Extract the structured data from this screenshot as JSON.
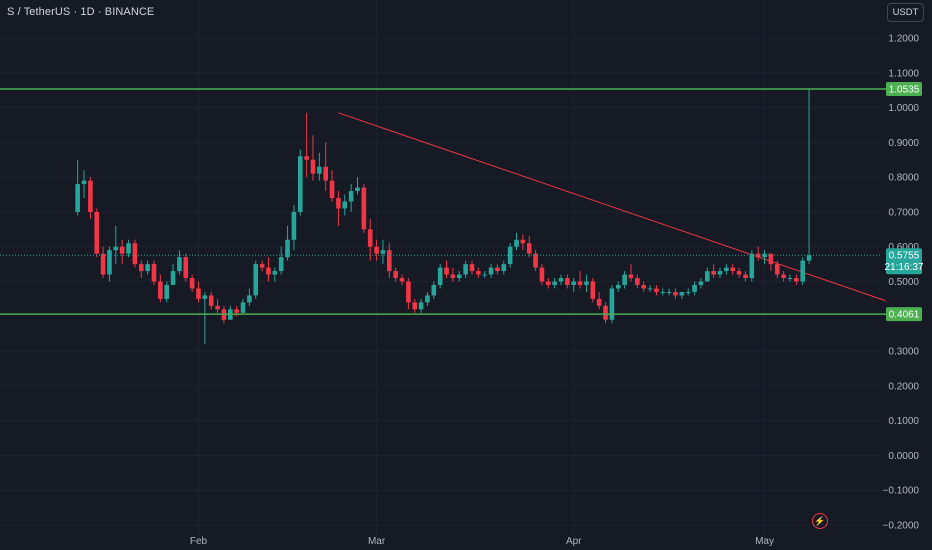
{
  "header": {
    "symbol_title": "S / TetherUS · 1D · BINANCE",
    "currency_button": "USDT"
  },
  "colors": {
    "background": "#161a25",
    "up": "#26a69a",
    "down": "#f23645",
    "support_resistance": "#4caf50",
    "trendline": "#f23645",
    "price_line": "#26a69a"
  },
  "icons": {
    "flash": "lightning-icon"
  },
  "chart_data": {
    "type": "candlestick",
    "y_axis": {
      "ticks": [
        "1.2000",
        "1.1000",
        "1.0000",
        "0.9000",
        "0.8000",
        "0.7000",
        "0.6000",
        "0.5000",
        "0.3000",
        "0.2000",
        "0.1000",
        "0.0000",
        "−0.1000",
        "−0.2000"
      ],
      "range": [
        -0.2,
        1.22
      ]
    },
    "x_axis": {
      "ticks": [
        "Feb",
        "Mar",
        "Apr",
        "May"
      ]
    },
    "horizontal_lines": [
      {
        "price": 1.0535,
        "label": "1.0535"
      },
      {
        "price": 0.4061,
        "label": "0.4061"
      }
    ],
    "current_price": {
      "price": 0.5755,
      "label": "0.5755",
      "countdown": "21:16:37"
    },
    "trendline": {
      "start": [
        "Feb 23",
        0.985
      ],
      "end": [
        "May 20",
        0.445
      ]
    },
    "candles": [
      {
        "d": "Jan 13",
        "o": 0.7,
        "h": 0.85,
        "l": 0.69,
        "c": 0.78
      },
      {
        "d": "Jan 14",
        "o": 0.78,
        "h": 0.82,
        "l": 0.74,
        "c": 0.79
      },
      {
        "d": "Jan 15",
        "o": 0.79,
        "h": 0.8,
        "l": 0.68,
        "c": 0.7
      },
      {
        "d": "Jan 16",
        "o": 0.7,
        "h": 0.71,
        "l": 0.57,
        "c": 0.58
      },
      {
        "d": "Jan 17",
        "o": 0.58,
        "h": 0.6,
        "l": 0.51,
        "c": 0.52
      },
      {
        "d": "Jan 18",
        "o": 0.52,
        "h": 0.6,
        "l": 0.5,
        "c": 0.59
      },
      {
        "d": "Jan 19",
        "o": 0.59,
        "h": 0.66,
        "l": 0.55,
        "c": 0.6
      },
      {
        "d": "Jan 20",
        "o": 0.6,
        "h": 0.62,
        "l": 0.55,
        "c": 0.58
      },
      {
        "d": "Jan 21",
        "o": 0.58,
        "h": 0.62,
        "l": 0.57,
        "c": 0.61
      },
      {
        "d": "Jan 22",
        "o": 0.61,
        "h": 0.62,
        "l": 0.54,
        "c": 0.55
      },
      {
        "d": "Jan 23",
        "o": 0.55,
        "h": 0.56,
        "l": 0.51,
        "c": 0.53
      },
      {
        "d": "Jan 24",
        "o": 0.53,
        "h": 0.56,
        "l": 0.52,
        "c": 0.55
      },
      {
        "d": "Jan 25",
        "o": 0.55,
        "h": 0.56,
        "l": 0.49,
        "c": 0.5
      },
      {
        "d": "Jan 26",
        "o": 0.5,
        "h": 0.52,
        "l": 0.44,
        "c": 0.45
      },
      {
        "d": "Jan 27",
        "o": 0.45,
        "h": 0.5,
        "l": 0.44,
        "c": 0.49
      },
      {
        "d": "Jan 28",
        "o": 0.49,
        "h": 0.55,
        "l": 0.49,
        "c": 0.53
      },
      {
        "d": "Jan 29",
        "o": 0.53,
        "h": 0.59,
        "l": 0.52,
        "c": 0.57
      },
      {
        "d": "Jan 30",
        "o": 0.57,
        "h": 0.58,
        "l": 0.5,
        "c": 0.51
      },
      {
        "d": "Jan 31",
        "o": 0.51,
        "h": 0.52,
        "l": 0.47,
        "c": 0.48
      },
      {
        "d": "Feb 1",
        "o": 0.48,
        "h": 0.5,
        "l": 0.44,
        "c": 0.45
      },
      {
        "d": "Feb 2",
        "o": 0.45,
        "h": 0.47,
        "l": 0.32,
        "c": 0.46
      },
      {
        "d": "Feb 3",
        "o": 0.46,
        "h": 0.47,
        "l": 0.42,
        "c": 0.43
      },
      {
        "d": "Feb 4",
        "o": 0.43,
        "h": 0.45,
        "l": 0.41,
        "c": 0.42
      },
      {
        "d": "Feb 5",
        "o": 0.42,
        "h": 0.43,
        "l": 0.38,
        "c": 0.39
      },
      {
        "d": "Feb 6",
        "o": 0.39,
        "h": 0.43,
        "l": 0.39,
        "c": 0.42
      },
      {
        "d": "Feb 7",
        "o": 0.42,
        "h": 0.43,
        "l": 0.4,
        "c": 0.41
      },
      {
        "d": "Feb 8",
        "o": 0.41,
        "h": 0.45,
        "l": 0.41,
        "c": 0.44
      },
      {
        "d": "Feb 9",
        "o": 0.44,
        "h": 0.48,
        "l": 0.43,
        "c": 0.46
      },
      {
        "d": "Feb 10",
        "o": 0.46,
        "h": 0.56,
        "l": 0.45,
        "c": 0.55
      },
      {
        "d": "Feb 11",
        "o": 0.55,
        "h": 0.56,
        "l": 0.53,
        "c": 0.54
      },
      {
        "d": "Feb 12",
        "o": 0.54,
        "h": 0.57,
        "l": 0.5,
        "c": 0.52
      },
      {
        "d": "Feb 13",
        "o": 0.52,
        "h": 0.54,
        "l": 0.5,
        "c": 0.53
      },
      {
        "d": "Feb 14",
        "o": 0.53,
        "h": 0.6,
        "l": 0.52,
        "c": 0.57
      },
      {
        "d": "Feb 15",
        "o": 0.57,
        "h": 0.66,
        "l": 0.56,
        "c": 0.62
      },
      {
        "d": "Feb 16",
        "o": 0.62,
        "h": 0.72,
        "l": 0.59,
        "c": 0.7
      },
      {
        "d": "Feb 17",
        "o": 0.7,
        "h": 0.88,
        "l": 0.69,
        "c": 0.86
      },
      {
        "d": "Feb 18",
        "o": 0.86,
        "h": 0.985,
        "l": 0.8,
        "c": 0.85
      },
      {
        "d": "Feb 19",
        "o": 0.85,
        "h": 0.92,
        "l": 0.79,
        "c": 0.81
      },
      {
        "d": "Feb 20",
        "o": 0.81,
        "h": 0.87,
        "l": 0.79,
        "c": 0.83
      },
      {
        "d": "Feb 21",
        "o": 0.83,
        "h": 0.9,
        "l": 0.76,
        "c": 0.79
      },
      {
        "d": "Feb 22",
        "o": 0.79,
        "h": 0.82,
        "l": 0.73,
        "c": 0.74
      },
      {
        "d": "Feb 23",
        "o": 0.74,
        "h": 0.76,
        "l": 0.66,
        "c": 0.71
      },
      {
        "d": "Feb 24",
        "o": 0.71,
        "h": 0.75,
        "l": 0.69,
        "c": 0.73
      },
      {
        "d": "Feb 25",
        "o": 0.73,
        "h": 0.78,
        "l": 0.7,
        "c": 0.76
      },
      {
        "d": "Feb 26",
        "o": 0.76,
        "h": 0.8,
        "l": 0.75,
        "c": 0.77
      },
      {
        "d": "Feb 27",
        "o": 0.77,
        "h": 0.78,
        "l": 0.64,
        "c": 0.65
      },
      {
        "d": "Feb 28",
        "o": 0.65,
        "h": 0.68,
        "l": 0.56,
        "c": 0.6
      },
      {
        "d": "Mar 1",
        "o": 0.6,
        "h": 0.62,
        "l": 0.56,
        "c": 0.58
      },
      {
        "d": "Mar 2",
        "o": 0.58,
        "h": 0.62,
        "l": 0.55,
        "c": 0.59
      },
      {
        "d": "Mar 3",
        "o": 0.59,
        "h": 0.61,
        "l": 0.51,
        "c": 0.53
      },
      {
        "d": "Mar 4",
        "o": 0.53,
        "h": 0.54,
        "l": 0.5,
        "c": 0.51
      },
      {
        "d": "Mar 5",
        "o": 0.51,
        "h": 0.52,
        "l": 0.49,
        "c": 0.5
      },
      {
        "d": "Mar 6",
        "o": 0.5,
        "h": 0.51,
        "l": 0.42,
        "c": 0.44
      },
      {
        "d": "Mar 7",
        "o": 0.44,
        "h": 0.45,
        "l": 0.41,
        "c": 0.42
      },
      {
        "d": "Mar 8",
        "o": 0.42,
        "h": 0.45,
        "l": 0.41,
        "c": 0.44
      },
      {
        "d": "Mar 9",
        "o": 0.44,
        "h": 0.47,
        "l": 0.43,
        "c": 0.46
      },
      {
        "d": "Mar 10",
        "o": 0.46,
        "h": 0.5,
        "l": 0.45,
        "c": 0.49
      },
      {
        "d": "Mar 11",
        "o": 0.49,
        "h": 0.55,
        "l": 0.48,
        "c": 0.54
      },
      {
        "d": "Mar 12",
        "o": 0.54,
        "h": 0.56,
        "l": 0.51,
        "c": 0.52
      },
      {
        "d": "Mar 13",
        "o": 0.52,
        "h": 0.54,
        "l": 0.5,
        "c": 0.51
      },
      {
        "d": "Mar 14",
        "o": 0.51,
        "h": 0.53,
        "l": 0.5,
        "c": 0.52
      },
      {
        "d": "Mar 15",
        "o": 0.52,
        "h": 0.56,
        "l": 0.51,
        "c": 0.55
      },
      {
        "d": "Mar 16",
        "o": 0.55,
        "h": 0.56,
        "l": 0.52,
        "c": 0.53
      },
      {
        "d": "Mar 17",
        "o": 0.53,
        "h": 0.54,
        "l": 0.51,
        "c": 0.52
      },
      {
        "d": "Mar 18",
        "o": 0.52,
        "h": 0.53,
        "l": 0.51,
        "c": 0.52
      },
      {
        "d": "Mar 19",
        "o": 0.52,
        "h": 0.55,
        "l": 0.51,
        "c": 0.54
      },
      {
        "d": "Mar 20",
        "o": 0.54,
        "h": 0.55,
        "l": 0.52,
        "c": 0.53
      },
      {
        "d": "Mar 21",
        "o": 0.53,
        "h": 0.56,
        "l": 0.52,
        "c": 0.55
      },
      {
        "d": "Mar 22",
        "o": 0.55,
        "h": 0.61,
        "l": 0.54,
        "c": 0.6
      },
      {
        "d": "Mar 23",
        "o": 0.6,
        "h": 0.64,
        "l": 0.59,
        "c": 0.62
      },
      {
        "d": "Mar 24",
        "o": 0.62,
        "h": 0.635,
        "l": 0.59,
        "c": 0.61
      },
      {
        "d": "Mar 25",
        "o": 0.61,
        "h": 0.63,
        "l": 0.57,
        "c": 0.58
      },
      {
        "d": "Mar 26",
        "o": 0.58,
        "h": 0.59,
        "l": 0.53,
        "c": 0.54
      },
      {
        "d": "Mar 27",
        "o": 0.54,
        "h": 0.55,
        "l": 0.49,
        "c": 0.5
      },
      {
        "d": "Mar 28",
        "o": 0.5,
        "h": 0.51,
        "l": 0.48,
        "c": 0.49
      },
      {
        "d": "Mar 29",
        "o": 0.49,
        "h": 0.51,
        "l": 0.48,
        "c": 0.5
      },
      {
        "d": "Mar 30",
        "o": 0.5,
        "h": 0.52,
        "l": 0.49,
        "c": 0.51
      },
      {
        "d": "Mar 31",
        "o": 0.51,
        "h": 0.52,
        "l": 0.48,
        "c": 0.49
      },
      {
        "d": "Apr 1",
        "o": 0.49,
        "h": 0.51,
        "l": 0.47,
        "c": 0.5
      },
      {
        "d": "Apr 2",
        "o": 0.5,
        "h": 0.53,
        "l": 0.48,
        "c": 0.49
      },
      {
        "d": "Apr 3",
        "o": 0.49,
        "h": 0.52,
        "l": 0.47,
        "c": 0.5
      },
      {
        "d": "Apr 4",
        "o": 0.5,
        "h": 0.51,
        "l": 0.44,
        "c": 0.45
      },
      {
        "d": "Apr 5",
        "o": 0.45,
        "h": 0.47,
        "l": 0.42,
        "c": 0.43
      },
      {
        "d": "Apr 6",
        "o": 0.43,
        "h": 0.44,
        "l": 0.38,
        "c": 0.39
      },
      {
        "d": "Apr 7",
        "o": 0.39,
        "h": 0.49,
        "l": 0.38,
        "c": 0.48
      },
      {
        "d": "Apr 8",
        "o": 0.48,
        "h": 0.5,
        "l": 0.47,
        "c": 0.49
      },
      {
        "d": "Apr 9",
        "o": 0.49,
        "h": 0.53,
        "l": 0.48,
        "c": 0.52
      },
      {
        "d": "Apr 10",
        "o": 0.52,
        "h": 0.55,
        "l": 0.5,
        "c": 0.51
      },
      {
        "d": "Apr 11",
        "o": 0.51,
        "h": 0.52,
        "l": 0.48,
        "c": 0.49
      },
      {
        "d": "Apr 12",
        "o": 0.49,
        "h": 0.5,
        "l": 0.47,
        "c": 0.48
      },
      {
        "d": "Apr 13",
        "o": 0.48,
        "h": 0.49,
        "l": 0.47,
        "c": 0.48
      },
      {
        "d": "Apr 14",
        "o": 0.48,
        "h": 0.49,
        "l": 0.46,
        "c": 0.47
      },
      {
        "d": "Apr 15",
        "o": 0.47,
        "h": 0.48,
        "l": 0.46,
        "c": 0.47
      },
      {
        "d": "Apr 16",
        "o": 0.47,
        "h": 0.48,
        "l": 0.46,
        "c": 0.47
      },
      {
        "d": "Apr 17",
        "o": 0.47,
        "h": 0.48,
        "l": 0.45,
        "c": 0.46
      },
      {
        "d": "Apr 18",
        "o": 0.46,
        "h": 0.47,
        "l": 0.45,
        "c": 0.47
      },
      {
        "d": "Apr 19",
        "o": 0.47,
        "h": 0.48,
        "l": 0.46,
        "c": 0.47
      },
      {
        "d": "Apr 20",
        "o": 0.47,
        "h": 0.5,
        "l": 0.46,
        "c": 0.49
      },
      {
        "d": "Apr 21",
        "o": 0.49,
        "h": 0.51,
        "l": 0.48,
        "c": 0.5
      },
      {
        "d": "Apr 22",
        "o": 0.5,
        "h": 0.54,
        "l": 0.5,
        "c": 0.53
      },
      {
        "d": "Apr 23",
        "o": 0.53,
        "h": 0.55,
        "l": 0.51,
        "c": 0.52
      },
      {
        "d": "Apr 24",
        "o": 0.52,
        "h": 0.54,
        "l": 0.51,
        "c": 0.53
      },
      {
        "d": "Apr 25",
        "o": 0.53,
        "h": 0.55,
        "l": 0.52,
        "c": 0.54
      },
      {
        "d": "Apr 26",
        "o": 0.54,
        "h": 0.55,
        "l": 0.52,
        "c": 0.53
      },
      {
        "d": "Apr 27",
        "o": 0.53,
        "h": 0.54,
        "l": 0.51,
        "c": 0.52
      },
      {
        "d": "Apr 28",
        "o": 0.52,
        "h": 0.53,
        "l": 0.5,
        "c": 0.51
      },
      {
        "d": "Apr 29",
        "o": 0.51,
        "h": 0.59,
        "l": 0.5,
        "c": 0.58
      },
      {
        "d": "Apr 30",
        "o": 0.58,
        "h": 0.6,
        "l": 0.56,
        "c": 0.57
      },
      {
        "d": "May 1",
        "o": 0.57,
        "h": 0.59,
        "l": 0.55,
        "c": 0.58
      },
      {
        "d": "May 2",
        "o": 0.58,
        "h": 0.58,
        "l": 0.53,
        "c": 0.55
      },
      {
        "d": "May 3",
        "o": 0.55,
        "h": 0.56,
        "l": 0.51,
        "c": 0.52
      },
      {
        "d": "May 4",
        "o": 0.52,
        "h": 0.53,
        "l": 0.5,
        "c": 0.51
      },
      {
        "d": "May 5",
        "o": 0.51,
        "h": 0.52,
        "l": 0.5,
        "c": 0.51
      },
      {
        "d": "May 6",
        "o": 0.51,
        "h": 0.52,
        "l": 0.49,
        "c": 0.5
      },
      {
        "d": "May 7",
        "o": 0.5,
        "h": 0.57,
        "l": 0.49,
        "c": 0.56
      },
      {
        "d": "May 8",
        "o": 0.56,
        "h": 1.0535,
        "l": 0.55,
        "c": 0.5755
      }
    ]
  }
}
